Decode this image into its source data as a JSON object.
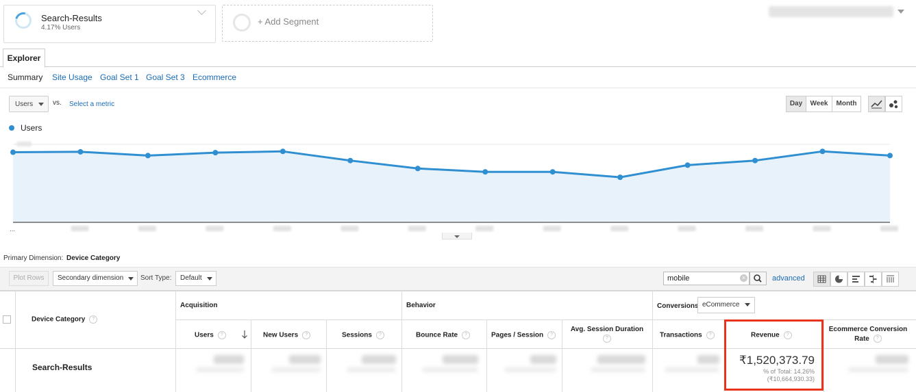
{
  "segments": {
    "active": {
      "name": "Search-Results",
      "subtitle": "4.17% Users"
    },
    "add_label": "+ Add Segment"
  },
  "tabs": {
    "explorer": "Explorer"
  },
  "subnav": [
    "Summary",
    "Site Usage",
    "Goal Set 1",
    "Goal Set 3",
    "Ecommerce"
  ],
  "metric": {
    "selected": "Users",
    "vs": "vs.",
    "select_metric": "Select a metric"
  },
  "time_buttons": [
    "Day",
    "Week",
    "Month"
  ],
  "chart_toggle_icons": [
    "line-chart-icon",
    "motion-chart-icon"
  ],
  "legend": {
    "label": "Users",
    "color": "#2f8fd1"
  },
  "chart_data": {
    "type": "area",
    "series": [
      {
        "name": "Users",
        "values": [
          0.84,
          0.845,
          0.8,
          0.835,
          0.85,
          0.74,
          0.645,
          0.605,
          0.605,
          0.54,
          0.685,
          0.74,
          0.85,
          0.8
        ]
      }
    ],
    "xlabel": "",
    "ylabel": "",
    "grid": true,
    "note": "axis tick labels are blurred in the screenshot"
  },
  "primary_dimension": {
    "label": "Primary Dimension:",
    "value": "Device Category"
  },
  "toolbar": {
    "plot_rows": "Plot Rows",
    "secondary_dimension": "Secondary dimension",
    "sort_type_label": "Sort Type:",
    "sort_type_value": "Default",
    "search_value": "mobile",
    "advanced": "advanced"
  },
  "view_icons": [
    "data-table-icon",
    "pie-chart-icon",
    "performance-bar-icon",
    "comparison-icon",
    "term-cloud-icon"
  ],
  "table": {
    "dimension_header": "Device Category",
    "groups": {
      "acquisition": "Acquisition",
      "behavior": "Behavior",
      "conversions": "Conversions"
    },
    "conversions_select": "eCommerce",
    "columns": {
      "users": "Users",
      "new_users": "New Users",
      "sessions": "Sessions",
      "bounce_rate": "Bounce Rate",
      "pages_session": "Pages / Session",
      "avg_session_duration": "Avg. Session Duration",
      "transactions": "Transactions",
      "revenue": "Revenue",
      "ecommerce_conversion_rate": "Ecommerce Conversion Rate"
    },
    "row": {
      "label": "Search-Results",
      "revenue": "₹1,520,373.79",
      "revenue_pct": "% of Total: 14.26%",
      "revenue_total": "(₹10,664,930.33)"
    }
  }
}
